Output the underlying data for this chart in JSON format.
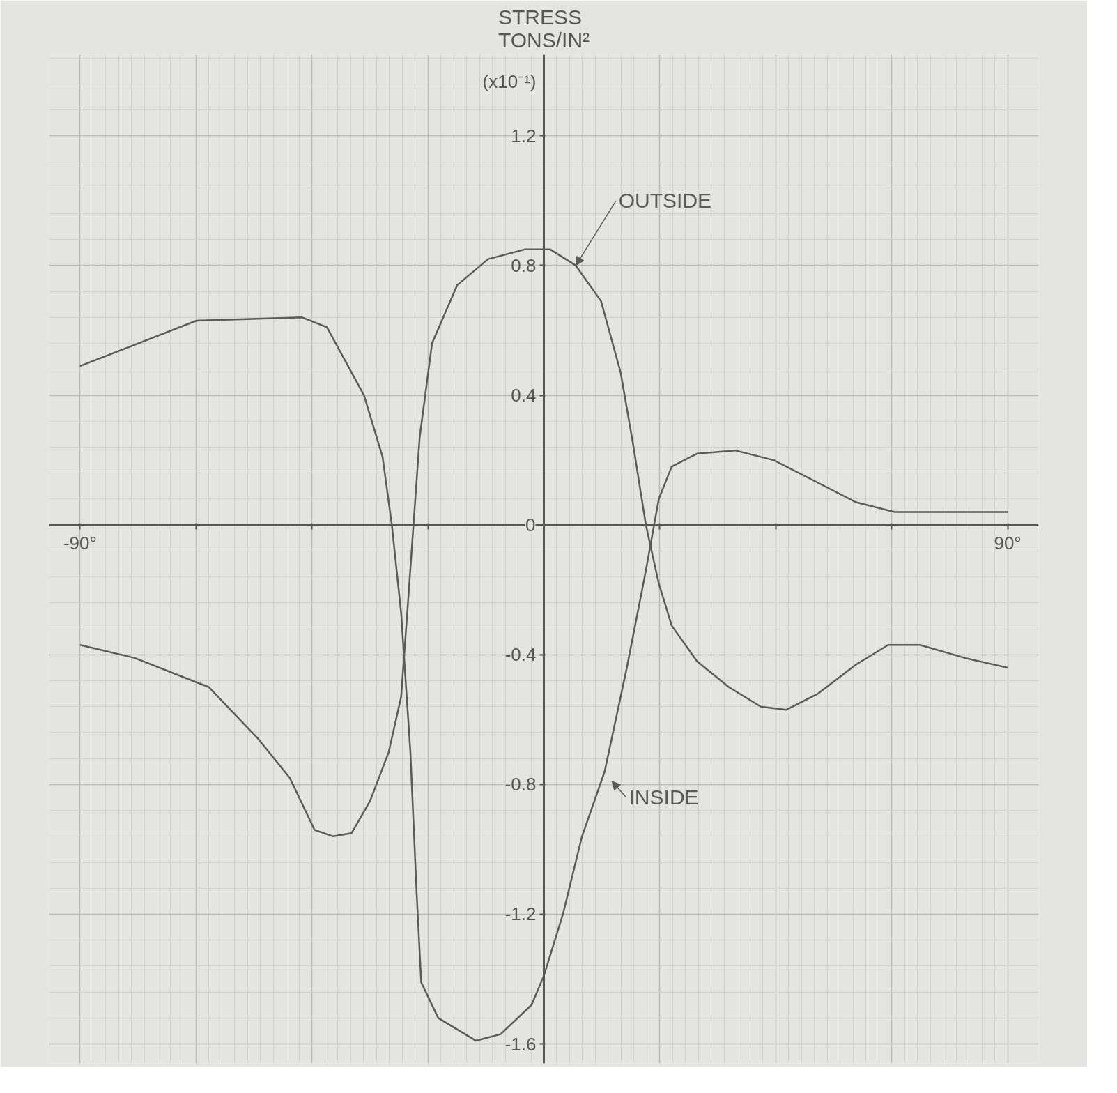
{
  "chart_data": {
    "type": "line",
    "ylabel": "STRESS\nTONS/IN²",
    "annotations": [
      "(x10⁻¹)"
    ],
    "xlim": [
      -96,
      96
    ],
    "ylim": [
      -1.66,
      1.45
    ],
    "xticks": [
      {
        "value": -90,
        "label": "-90°"
      },
      {
        "value": -67.5,
        "label": null
      },
      {
        "value": -45,
        "label": null
      },
      {
        "value": -22.5,
        "label": null
      },
      {
        "value": 0,
        "label": null
      },
      {
        "value": 22.5,
        "label": null
      },
      {
        "value": 45,
        "label": null
      },
      {
        "value": 67.5,
        "label": null
      },
      {
        "value": 90,
        "label": "90°"
      }
    ],
    "yticks": [
      -1.6,
      -1.2,
      -0.8,
      -0.4,
      0,
      0.4,
      0.8,
      1.2
    ],
    "grid": true,
    "marker": "none",
    "line_style": "solid",
    "series": [
      {
        "name": "OUTSIDE",
        "color": "#5a5a5a",
        "x": [
          -90,
          -79.4,
          -65.0,
          -55.4,
          -49.3,
          -44.5,
          -40.9,
          -37.3,
          -33.7,
          -30.1,
          -27.7,
          -26.5,
          -25.3,
          -24.1,
          -21.7,
          -16.8,
          -10.8,
          -3.6,
          1.2,
          6.2,
          11.1,
          14.9,
          17.3,
          19.8,
          22.3,
          24.8,
          29.7,
          35.9,
          42.1,
          47.0,
          53.2,
          60.6,
          66.8,
          73.0,
          81.7,
          90
        ],
        "values": [
          -0.37,
          -0.41,
          -0.5,
          -0.66,
          -0.78,
          -0.94,
          -0.96,
          -0.95,
          -0.85,
          -0.7,
          -0.53,
          -0.27,
          0.0,
          0.27,
          0.56,
          0.74,
          0.82,
          0.85,
          0.85,
          0.8,
          0.69,
          0.47,
          0.25,
          0.0,
          -0.18,
          -0.31,
          -0.42,
          -0.5,
          -0.56,
          -0.57,
          -0.52,
          -0.43,
          -0.37,
          -0.37,
          -0.41,
          -0.44
        ]
      },
      {
        "name": "INSIDE",
        "color": "#5a5a5a",
        "x": [
          -90,
          -67.4,
          -46.9,
          -42.1,
          -34.9,
          -31.3,
          -29.5,
          -27.7,
          -25.9,
          -24.7,
          -23.8,
          -20.5,
          -13.2,
          -8.4,
          -2.4,
          0,
          3.7,
          7.4,
          11.8,
          16.1,
          19.8,
          22.3,
          24.8,
          29.7,
          37.1,
          44.6,
          52.0,
          60.6,
          68.1,
          79.2,
          90
        ],
        "values": [
          0.49,
          0.63,
          0.64,
          0.61,
          0.4,
          0.21,
          0.0,
          -0.27,
          -0.7,
          -1.13,
          -1.41,
          -1.52,
          -1.59,
          -1.57,
          -1.48,
          -1.39,
          -1.2,
          -0.96,
          -0.76,
          -0.44,
          -0.14,
          0.08,
          0.18,
          0.22,
          0.23,
          0.2,
          0.14,
          0.07,
          0.04,
          0.04,
          0.04
        ]
      }
    ]
  }
}
